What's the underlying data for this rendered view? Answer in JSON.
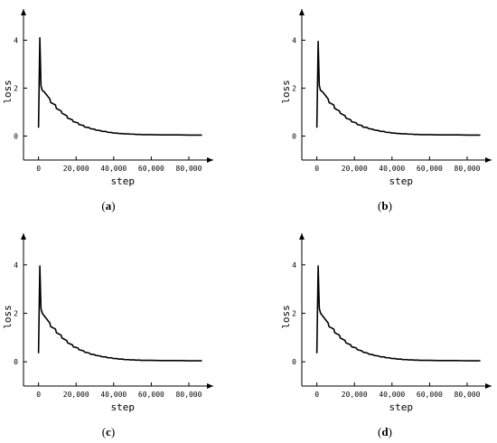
{
  "chart_data": [
    {
      "type": "line",
      "panel_label": {
        "open": "(",
        "letter": "a",
        "close": ")"
      },
      "xlabel": "step",
      "ylabel": "loss",
      "xticks": [
        0,
        20000,
        40000,
        60000,
        80000
      ],
      "xtick_labels": [
        "0",
        "20,000",
        "40,000",
        "60,000",
        "80,000"
      ],
      "yticks": [
        0,
        2,
        4
      ],
      "ytick_labels": [
        "0",
        "2",
        "4"
      ],
      "xlim": [
        -8000,
        93000
      ],
      "ylim": [
        -1.0,
        5.3
      ],
      "grid": false,
      "series": [
        {
          "x": [
            0,
            700,
            1300,
            2000,
            3000,
            4000,
            6000,
            6500,
            9000,
            9500,
            12000,
            12500,
            15000,
            15500,
            18000,
            18500,
            21000,
            21500,
            24000,
            24500,
            27000,
            27500,
            30000,
            30500,
            33000,
            33500,
            36000,
            36500,
            39000,
            39500,
            42000,
            42500,
            45000,
            45500,
            48000,
            48500,
            51000,
            51500,
            54000,
            54500,
            60000,
            65000,
            70000,
            75000,
            80000,
            87000
          ],
          "y": [
            0.35,
            4.1,
            2.1,
            1.9,
            1.85,
            1.75,
            1.55,
            1.4,
            1.3,
            1.15,
            1.05,
            0.95,
            0.85,
            0.75,
            0.68,
            0.6,
            0.55,
            0.48,
            0.44,
            0.38,
            0.35,
            0.31,
            0.28,
            0.25,
            0.23,
            0.2,
            0.19,
            0.16,
            0.15,
            0.13,
            0.12,
            0.11,
            0.1,
            0.09,
            0.09,
            0.08,
            0.08,
            0.07,
            0.07,
            0.06,
            0.06,
            0.05,
            0.05,
            0.05,
            0.04,
            0.04
          ]
        }
      ]
    },
    {
      "type": "line",
      "panel_label": {
        "open": "(",
        "letter": "b",
        "close": ")"
      },
      "xlabel": "step",
      "ylabel": "loss",
      "xticks": [
        0,
        20000,
        40000,
        60000,
        80000
      ],
      "xtick_labels": [
        "0",
        "20,000",
        "40,000",
        "60,000",
        "80,000"
      ],
      "yticks": [
        0,
        2,
        4
      ],
      "ytick_labels": [
        "0",
        "2",
        "4"
      ],
      "xlim": [
        -8000,
        93000
      ],
      "ylim": [
        -1.0,
        5.3
      ],
      "grid": false,
      "series": [
        {
          "x": [
            0,
            700,
            1300,
            2000,
            3000,
            4000,
            6000,
            6500,
            9000,
            9500,
            12000,
            12500,
            15000,
            15500,
            18000,
            18500,
            21000,
            21500,
            24000,
            24500,
            27000,
            27500,
            30000,
            30500,
            33000,
            33500,
            36000,
            36500,
            39000,
            39500,
            42000,
            42500,
            45000,
            45500,
            48000,
            48500,
            51000,
            51500,
            54000,
            54500,
            60000,
            65000,
            70000,
            75000,
            80000,
            87000
          ],
          "y": [
            0.35,
            3.95,
            2.1,
            1.9,
            1.85,
            1.75,
            1.55,
            1.4,
            1.3,
            1.15,
            1.05,
            0.95,
            0.85,
            0.75,
            0.68,
            0.6,
            0.55,
            0.48,
            0.44,
            0.38,
            0.35,
            0.31,
            0.28,
            0.25,
            0.23,
            0.2,
            0.19,
            0.16,
            0.15,
            0.13,
            0.12,
            0.11,
            0.1,
            0.09,
            0.09,
            0.08,
            0.08,
            0.07,
            0.07,
            0.06,
            0.06,
            0.05,
            0.05,
            0.05,
            0.04,
            0.04
          ]
        }
      ]
    },
    {
      "type": "line",
      "panel_label": {
        "open": "(",
        "letter": "c",
        "close": ")"
      },
      "xlabel": "step",
      "ylabel": "loss",
      "xticks": [
        0,
        20000,
        40000,
        60000,
        80000
      ],
      "xtick_labels": [
        "0",
        "20,000",
        "40,000",
        "60,000",
        "80,000"
      ],
      "yticks": [
        0,
        2,
        4
      ],
      "ytick_labels": [
        "0",
        "2",
        "4"
      ],
      "xlim": [
        -8000,
        93000
      ],
      "ylim": [
        -1.0,
        5.3
      ],
      "grid": false,
      "series": [
        {
          "x": [
            0,
            700,
            1300,
            2000,
            3000,
            4000,
            6000,
            6500,
            9000,
            9500,
            12000,
            12500,
            15000,
            15500,
            18000,
            18500,
            21000,
            21500,
            24000,
            24500,
            27000,
            27500,
            30000,
            30500,
            33000,
            33500,
            36000,
            36500,
            39000,
            39500,
            42000,
            42500,
            45000,
            45500,
            48000,
            48500,
            51000,
            51500,
            54000,
            54500,
            60000,
            65000,
            70000,
            75000,
            80000,
            87000
          ],
          "y": [
            0.35,
            3.95,
            2.2,
            2.0,
            1.9,
            1.8,
            1.6,
            1.45,
            1.35,
            1.2,
            1.1,
            0.98,
            0.88,
            0.78,
            0.7,
            0.62,
            0.57,
            0.5,
            0.45,
            0.4,
            0.36,
            0.32,
            0.29,
            0.26,
            0.24,
            0.21,
            0.2,
            0.17,
            0.16,
            0.14,
            0.13,
            0.11,
            0.11,
            0.09,
            0.09,
            0.08,
            0.08,
            0.07,
            0.07,
            0.06,
            0.06,
            0.05,
            0.05,
            0.05,
            0.04,
            0.04
          ]
        }
      ]
    },
    {
      "type": "line",
      "panel_label": {
        "open": "(",
        "letter": "d",
        "close": ")"
      },
      "xlabel": "step",
      "ylabel": "loss",
      "xticks": [
        0,
        20000,
        40000,
        60000,
        80000
      ],
      "xtick_labels": [
        "0",
        "20,000",
        "40,000",
        "60,000",
        "80,000"
      ],
      "yticks": [
        0,
        2,
        4
      ],
      "ytick_labels": [
        "0",
        "2",
        "4"
      ],
      "xlim": [
        -8000,
        93000
      ],
      "ylim": [
        -1.0,
        5.3
      ],
      "grid": false,
      "series": [
        {
          "x": [
            0,
            700,
            1300,
            2000,
            3000,
            4000,
            6000,
            6500,
            9000,
            9500,
            12000,
            12500,
            15000,
            15500,
            18000,
            18500,
            21000,
            21500,
            24000,
            24500,
            27000,
            27500,
            30000,
            30500,
            33000,
            33500,
            36000,
            36500,
            39000,
            39500,
            42000,
            42500,
            45000,
            45500,
            48000,
            48500,
            51000,
            51500,
            54000,
            54500,
            60000,
            65000,
            70000,
            75000,
            80000,
            87000
          ],
          "y": [
            0.35,
            3.95,
            2.2,
            2.0,
            1.9,
            1.8,
            1.6,
            1.45,
            1.35,
            1.2,
            1.1,
            0.98,
            0.88,
            0.78,
            0.7,
            0.62,
            0.57,
            0.5,
            0.45,
            0.4,
            0.36,
            0.32,
            0.29,
            0.26,
            0.24,
            0.21,
            0.2,
            0.17,
            0.16,
            0.14,
            0.13,
            0.11,
            0.11,
            0.09,
            0.09,
            0.08,
            0.08,
            0.07,
            0.07,
            0.06,
            0.06,
            0.05,
            0.05,
            0.05,
            0.04,
            0.04
          ]
        }
      ]
    }
  ]
}
